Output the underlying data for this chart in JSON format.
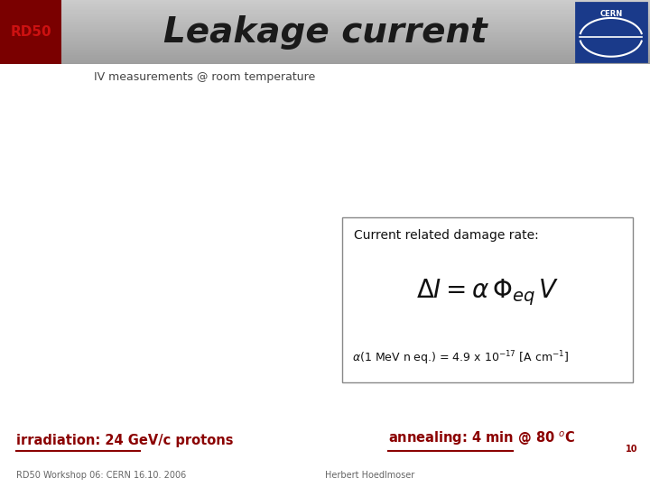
{
  "title": "Leakage current",
  "rd50_label": "RD50",
  "subtitle": "IV measurements @ room temperature",
  "box_title": "Current related damage rate:",
  "formula": "$\\Delta I = \\alpha \\, \\Phi_{eq} \\, V$",
  "alpha_line": "$\\alpha$(1 MeV n eq.) = 4.9 x 10$^{-17}$ [A cm$^{-1}$]",
  "irradiation_text": "irradiation: 24 GeV/c protons",
  "annealing_text": "annealing: 4 min @ 80 $^o$C",
  "annealing_subscript": "10",
  "footer_left": "RD50 Workshop 06: CERN 16.10. 2006",
  "footer_right": "Herbert Hoedlmoser",
  "header_border_color": "#7a0000",
  "rd50_bg_color": "#7a0000",
  "rd50_text_color": "#cc1111",
  "title_color": "#1a1a1a",
  "box_border_color": "#888888",
  "irradiation_color": "#8B0000",
  "annealing_color": "#8B0000",
  "footer_color": "#666666",
  "background_color": "#ffffff"
}
